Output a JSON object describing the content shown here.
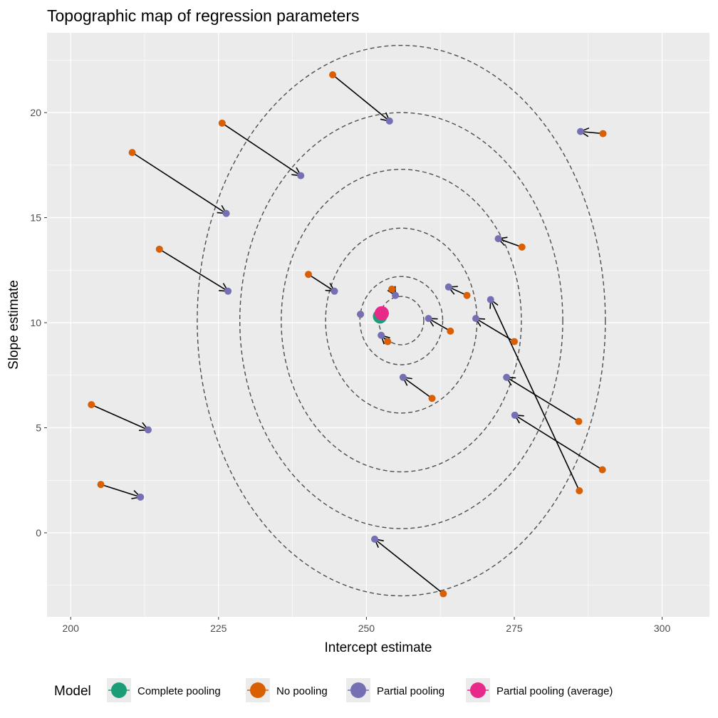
{
  "chart_data": {
    "type": "scatter",
    "title": "Topographic map of regression parameters",
    "xlabel": "Intercept estimate",
    "ylabel": "Slope estimate",
    "xlim": [
      196,
      308
    ],
    "ylim": [
      -4,
      23.8
    ],
    "xticks": [
      200,
      225,
      250,
      275,
      300
    ],
    "yticks": [
      0,
      5,
      10,
      15,
      20
    ],
    "grid": true,
    "legend": {
      "title": "Model",
      "position": "bottom",
      "entries": [
        {
          "label": "Complete pooling",
          "color": "#1b9e77"
        },
        {
          "label": "No pooling",
          "color": "#d95f02"
        },
        {
          "label": "Partial pooling",
          "color": "#7570b3"
        },
        {
          "label": "Partial pooling (average)",
          "color": "#e7298a"
        }
      ]
    },
    "contours": {
      "center": [
        255.9,
        10.1
      ],
      "semi_axes": [
        [
          3.8,
          1.15
        ],
        [
          7.0,
          2.1
        ],
        [
          12.8,
          4.4
        ],
        [
          20.3,
          7.2
        ],
        [
          27.3,
          9.9
        ],
        [
          34.5,
          13.1
        ]
      ]
    },
    "pairs": [
      {
        "no_pooling": [
          244.3,
          21.8
        ],
        "partial_pooling": [
          253.9,
          19.6
        ]
      },
      {
        "no_pooling": [
          225.6,
          19.5
        ],
        "partial_pooling": [
          238.9,
          17.0
        ]
      },
      {
        "no_pooling": [
          210.4,
          18.1
        ],
        "partial_pooling": [
          226.3,
          15.2
        ]
      },
      {
        "no_pooling": [
          215.0,
          13.5
        ],
        "partial_pooling": [
          226.6,
          11.5
        ]
      },
      {
        "no_pooling": [
          290.0,
          19.0
        ],
        "partial_pooling": [
          286.2,
          19.1
        ]
      },
      {
        "no_pooling": [
          276.3,
          13.6
        ],
        "partial_pooling": [
          272.3,
          14.0
        ]
      },
      {
        "no_pooling": [
          240.2,
          12.3
        ],
        "partial_pooling": [
          244.6,
          11.5
        ]
      },
      {
        "no_pooling": [
          267.0,
          11.3
        ],
        "partial_pooling": [
          263.9,
          11.7
        ]
      },
      {
        "no_pooling": [
          254.3,
          11.6
        ],
        "partial_pooling": [
          254.9,
          11.3
        ]
      },
      {
        "no_pooling": [
          264.2,
          9.6
        ],
        "partial_pooling": [
          260.5,
          10.2
        ]
      },
      {
        "no_pooling": [
          275.0,
          9.1
        ],
        "partial_pooling": [
          268.5,
          10.2
        ]
      },
      {
        "no_pooling": [
          249.0,
          10.4
        ],
        "partial_pooling": [
          249.0,
          10.4
        ]
      },
      {
        "no_pooling": [
          253.6,
          9.1
        ],
        "partial_pooling": [
          252.5,
          9.4
        ]
      },
      {
        "no_pooling": [
          286.0,
          2.0
        ],
        "partial_pooling": [
          271.0,
          11.1
        ]
      },
      {
        "no_pooling": [
          261.1,
          6.4
        ],
        "partial_pooling": [
          256.2,
          7.4
        ]
      },
      {
        "no_pooling": [
          285.9,
          5.3
        ],
        "partial_pooling": [
          273.7,
          7.4
        ]
      },
      {
        "no_pooling": [
          289.9,
          3.0
        ],
        "partial_pooling": [
          275.1,
          5.6
        ]
      },
      {
        "no_pooling": [
          203.5,
          6.1
        ],
        "partial_pooling": [
          213.1,
          4.9
        ]
      },
      {
        "no_pooling": [
          205.1,
          2.3
        ],
        "partial_pooling": [
          211.8,
          1.7
        ]
      },
      {
        "no_pooling": [
          263.0,
          -2.9
        ],
        "partial_pooling": [
          251.4,
          -0.3
        ]
      }
    ],
    "complete_pooling": [
      252.3,
      10.3
    ],
    "partial_pooling_average": [
      252.6,
      10.45
    ]
  }
}
